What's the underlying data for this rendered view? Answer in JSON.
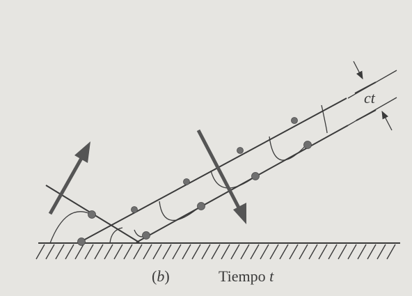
{
  "figure": {
    "panel_prefix": "(",
    "panel_letter": "b",
    "panel_suffix": ")",
    "time_word": "Tiempo",
    "time_symbol": "t",
    "distance_label": "ct"
  },
  "colors": {
    "background": "#e6e5e1",
    "ink": "#3a3a3a",
    "dot": "#6f6f6f"
  }
}
